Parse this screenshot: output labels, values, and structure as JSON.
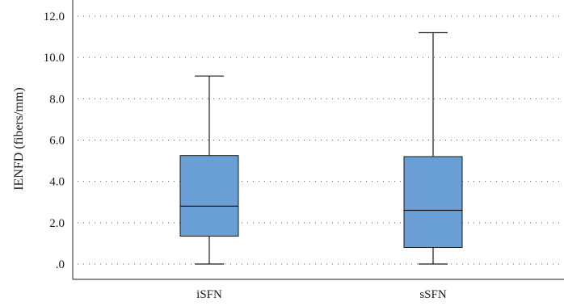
{
  "chart_data": {
    "type": "box",
    "ylabel": "IENFD (fibers/mm)",
    "categories": [
      "iSFN",
      "sSFN"
    ],
    "ylim": [
      0,
      12
    ],
    "yticks": [
      0,
      2,
      4,
      6,
      8,
      10,
      12
    ],
    "ytick_labels": [
      ".0",
      "2.0",
      "4.0",
      "6.0",
      "8.0",
      "10.0",
      "12.0"
    ],
    "grid": true,
    "box_color": "#6a9fd5",
    "boxes": [
      {
        "name": "iSFN",
        "min": 0.0,
        "q1": 1.35,
        "median": 2.8,
        "q3": 5.25,
        "max": 9.1
      },
      {
        "name": "sSFN",
        "min": 0.0,
        "q1": 0.8,
        "median": 2.6,
        "q3": 5.2,
        "max": 11.2
      }
    ]
  }
}
